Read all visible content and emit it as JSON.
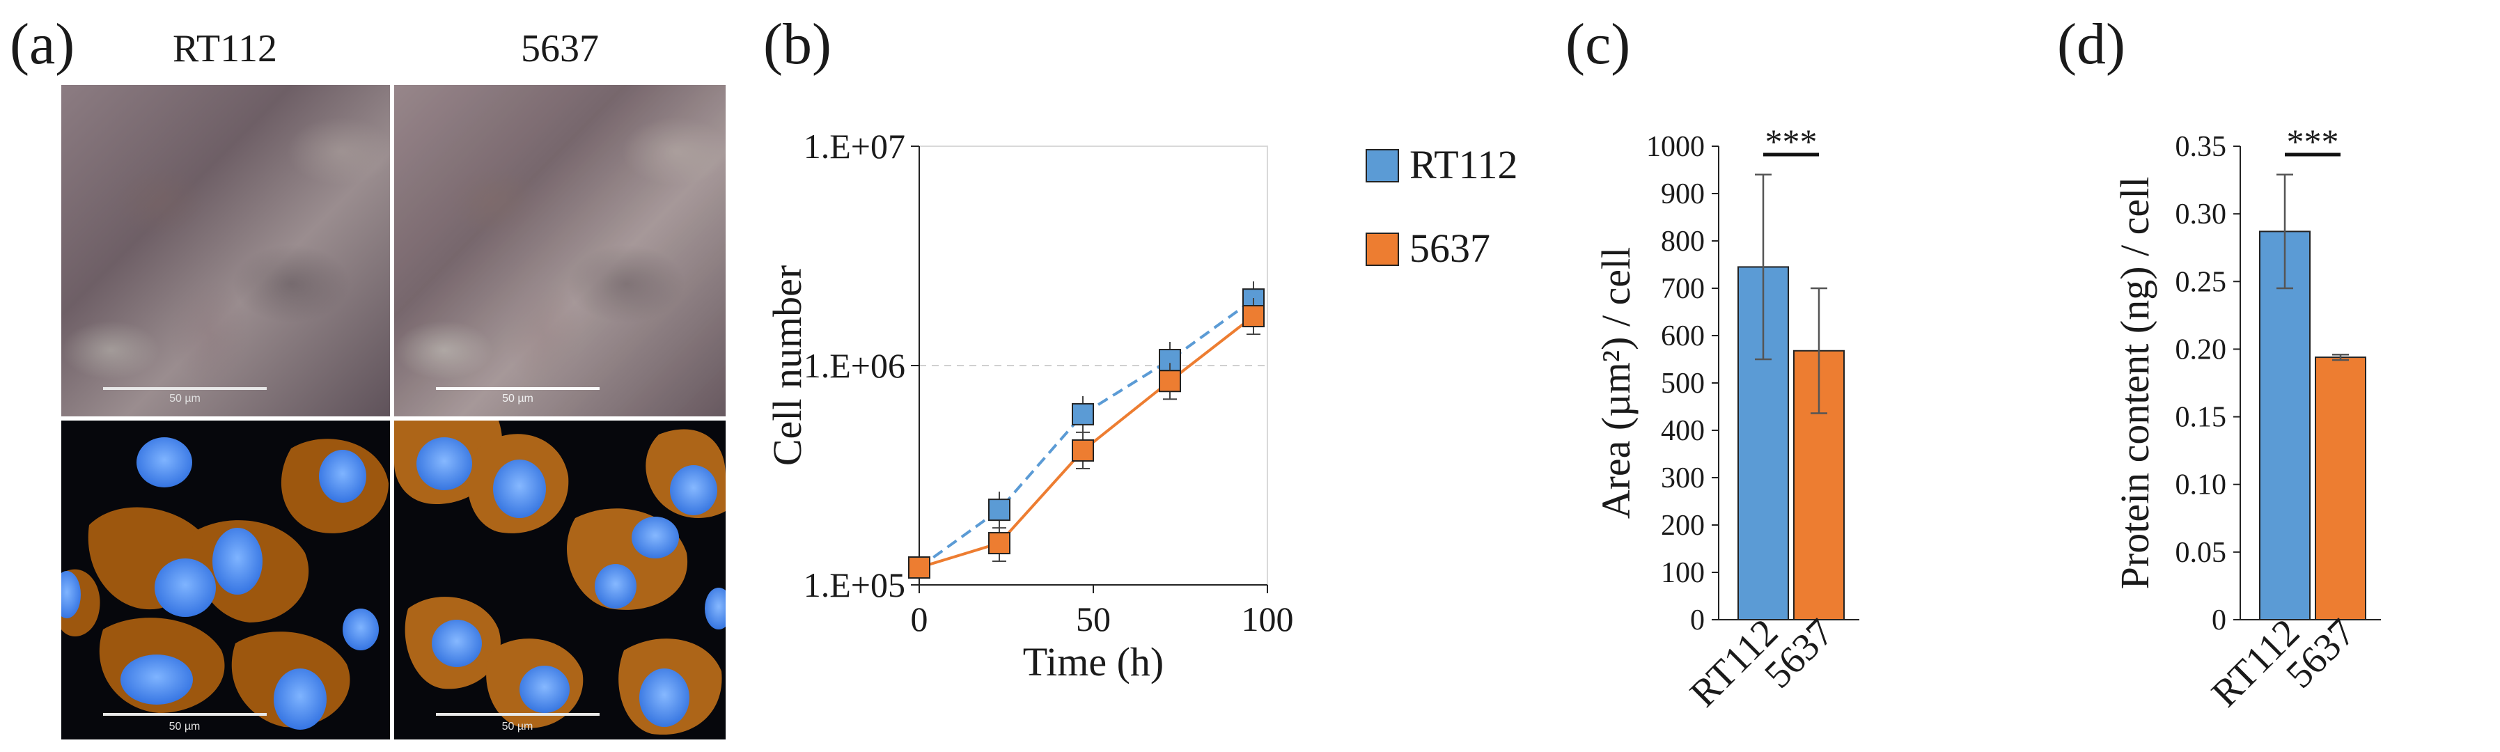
{
  "panels": {
    "a": {
      "letter": "(a)",
      "columns": [
        "RT112",
        "5637"
      ],
      "scale_label": "50 µm"
    },
    "b": {
      "letter": "(b)"
    },
    "c": {
      "letter": "(c)"
    },
    "d": {
      "letter": "(d)"
    }
  },
  "colors": {
    "rt112": "#5b9bd5",
    "c5637": "#ed7d31",
    "grid": "#d0d0d0"
  },
  "chart_data": [
    {
      "panel": "b",
      "type": "line",
      "xlabel": "Time (h)",
      "ylabel": "Cell number",
      "x_ticks": [
        "0",
        "50",
        "100"
      ],
      "y_ticks": [
        "1.E+05",
        "1.E+06",
        "1.E+07"
      ],
      "xlim": [
        0,
        100
      ],
      "ylim": [
        100000,
        10000000
      ],
      "y_scale": "log",
      "grid": "horizontal dashed at 1.E+06",
      "legend": "right",
      "series": [
        {
          "name": "RT112",
          "x": [
            0,
            23,
            47,
            72,
            96
          ],
          "y": [
            120000,
            220000,
            600000,
            1060000,
            2000000
          ],
          "style": "dashed"
        },
        {
          "name": "5637",
          "x": [
            0,
            23,
            47,
            72,
            96
          ],
          "y": [
            120000,
            155000,
            410000,
            850000,
            1680000
          ],
          "style": "solid"
        }
      ]
    },
    {
      "panel": "c",
      "type": "bar",
      "ylabel": "Area (µm²) / cell",
      "categories": [
        "RT112",
        "5637"
      ],
      "values": [
        745,
        568
      ],
      "errors": [
        195,
        132
      ],
      "ylim": [
        0,
        1000
      ],
      "y_ticks": [
        "0",
        "100",
        "200",
        "300",
        "400",
        "500",
        "600",
        "700",
        "800",
        "900",
        "1000"
      ],
      "significance": "***"
    },
    {
      "panel": "d",
      "type": "bar",
      "ylabel": "Protein content (ng) / cell",
      "categories": [
        "RT112",
        "5637"
      ],
      "values": [
        0.287,
        0.194
      ],
      "errors": [
        0.042,
        0.002
      ],
      "ylim": [
        0,
        0.35
      ],
      "y_ticks": [
        "0",
        "0.05",
        "0.10",
        "0.15",
        "0.20",
        "0.25",
        "0.30",
        "0.35"
      ],
      "significance": "***"
    }
  ]
}
